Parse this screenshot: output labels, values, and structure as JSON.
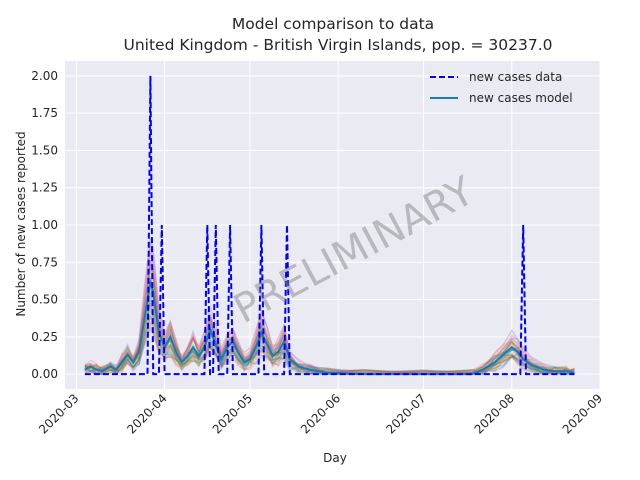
{
  "chart_data": {
    "type": "line",
    "title": "Model comparison to data",
    "subtitle": "United Kingdom - British Virgin Islands, pop. = 30237.0",
    "xlabel": "Day",
    "ylabel": "Number of new cases reported",
    "watermark": "PRELIMINARY",
    "x_tick_labels": [
      "2020-03",
      "2020-04",
      "2020-05",
      "2020-06",
      "2020-07",
      "2020-08",
      "2020-09"
    ],
    "x_tick_dates": [
      "2020-03-01",
      "2020-04-01",
      "2020-05-01",
      "2020-06-01",
      "2020-07-01",
      "2020-08-01",
      "2020-09-01"
    ],
    "y_tick_labels": [
      "0.00",
      "0.25",
      "0.50",
      "0.75",
      "1.00",
      "1.25",
      "1.50",
      "1.75",
      "2.00"
    ],
    "y_ticks": [
      0,
      0.25,
      0.5,
      0.75,
      1.0,
      1.25,
      1.5,
      1.75,
      2.0
    ],
    "xlim": [
      "2020-02-26",
      "2020-09-01"
    ],
    "ylim": [
      -0.1,
      2.1
    ],
    "grid": true,
    "legend_position": "top-right",
    "colors": {
      "background": "#eaeaf2",
      "data": "#0000ff",
      "model": "#1f77b4",
      "ensemble": [
        "#1f77b4",
        "#ff7f0e",
        "#2ca02c",
        "#d62728",
        "#9467bd",
        "#8c564b",
        "#e377c2",
        "#7f7f7f",
        "#bcbd22",
        "#17becf"
      ]
    },
    "series": [
      {
        "name": "new cases data",
        "style": "dashed",
        "points": [
          [
            "2020-03-04",
            0
          ],
          [
            "2020-03-26",
            0
          ],
          [
            "2020-03-27",
            2
          ],
          [
            "2020-03-28",
            0
          ],
          [
            "2020-03-30",
            0
          ],
          [
            "2020-03-31",
            1
          ],
          [
            "2020-04-01",
            0
          ],
          [
            "2020-04-15",
            0
          ],
          [
            "2020-04-16",
            1
          ],
          [
            "2020-04-17",
            0
          ],
          [
            "2020-04-18",
            0
          ],
          [
            "2020-04-19",
            1
          ],
          [
            "2020-04-20",
            0
          ],
          [
            "2020-04-23",
            0
          ],
          [
            "2020-04-24",
            1
          ],
          [
            "2020-04-25",
            0
          ],
          [
            "2020-05-04",
            0
          ],
          [
            "2020-05-05",
            1
          ],
          [
            "2020-05-06",
            0
          ],
          [
            "2020-05-13",
            0
          ],
          [
            "2020-05-14",
            1
          ],
          [
            "2020-05-15",
            0
          ],
          [
            "2020-08-04",
            0
          ],
          [
            "2020-08-05",
            1
          ],
          [
            "2020-08-06",
            0
          ],
          [
            "2020-08-23",
            0
          ]
        ]
      },
      {
        "name": "new cases model",
        "style": "solid",
        "points": [
          [
            "2020-03-04",
            0.03
          ],
          [
            "2020-03-06",
            0.05
          ],
          [
            "2020-03-08",
            0.03
          ],
          [
            "2020-03-10",
            0.02
          ],
          [
            "2020-03-13",
            0.05
          ],
          [
            "2020-03-15",
            0.03
          ],
          [
            "2020-03-17",
            0.08
          ],
          [
            "2020-03-19",
            0.13
          ],
          [
            "2020-03-21",
            0.08
          ],
          [
            "2020-03-23",
            0.15
          ],
          [
            "2020-03-25",
            0.38
          ],
          [
            "2020-03-27",
            0.62
          ],
          [
            "2020-03-28",
            0.55
          ],
          [
            "2020-03-30",
            0.28
          ],
          [
            "2020-04-01",
            0.18
          ],
          [
            "2020-04-03",
            0.25
          ],
          [
            "2020-04-05",
            0.15
          ],
          [
            "2020-04-07",
            0.08
          ],
          [
            "2020-04-09",
            0.12
          ],
          [
            "2020-04-11",
            0.18
          ],
          [
            "2020-04-13",
            0.12
          ],
          [
            "2020-04-15",
            0.18
          ],
          [
            "2020-04-17",
            0.3
          ],
          [
            "2020-04-19",
            0.2
          ],
          [
            "2020-04-21",
            0.1
          ],
          [
            "2020-04-23",
            0.18
          ],
          [
            "2020-04-25",
            0.22
          ],
          [
            "2020-04-27",
            0.14
          ],
          [
            "2020-04-29",
            0.08
          ],
          [
            "2020-05-01",
            0.1
          ],
          [
            "2020-05-03",
            0.18
          ],
          [
            "2020-05-05",
            0.28
          ],
          [
            "2020-05-07",
            0.2
          ],
          [
            "2020-05-09",
            0.12
          ],
          [
            "2020-05-11",
            0.15
          ],
          [
            "2020-05-13",
            0.22
          ],
          [
            "2020-05-15",
            0.1
          ],
          [
            "2020-05-18",
            0.05
          ],
          [
            "2020-05-22",
            0.03
          ],
          [
            "2020-05-28",
            0.01
          ],
          [
            "2020-06-10",
            0.0
          ],
          [
            "2020-07-01",
            0.0
          ],
          [
            "2020-07-18",
            0.0
          ],
          [
            "2020-07-22",
            0.03
          ],
          [
            "2020-07-26",
            0.08
          ],
          [
            "2020-07-29",
            0.13
          ],
          [
            "2020-08-01",
            0.18
          ],
          [
            "2020-08-03",
            0.15
          ],
          [
            "2020-08-05",
            0.1
          ],
          [
            "2020-08-08",
            0.06
          ],
          [
            "2020-08-12",
            0.03
          ],
          [
            "2020-08-16",
            0.02
          ],
          [
            "2020-08-20",
            0.02
          ],
          [
            "2020-08-23",
            0.01
          ]
        ]
      }
    ]
  }
}
